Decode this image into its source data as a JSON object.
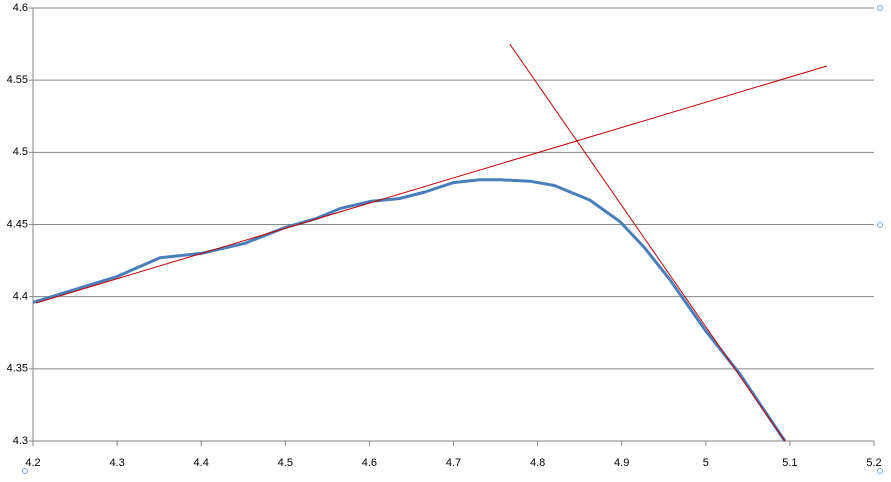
{
  "chart_data": {
    "type": "line",
    "xlim": [
      4.2,
      5.2
    ],
    "xticks": [
      4.2,
      4.3,
      4.4,
      4.5,
      4.6,
      4.7,
      4.8,
      4.9,
      5,
      5.1,
      5.2
    ],
    "ylim": [
      4.3,
      4.6
    ],
    "yticks": [
      4.6,
      4.55,
      4.5,
      4.45,
      4.4,
      4.35,
      4.3
    ],
    "grid": true,
    "series": [
      {
        "color": "#4a7ebb",
        "width": 3,
        "x": [
          4.2,
          4.3,
          4.351,
          4.4,
          4.452,
          4.5,
          4.536,
          4.565,
          4.601,
          4.636,
          4.666,
          4.7,
          4.731,
          4.755,
          4.791,
          4.82,
          4.862,
          4.898,
          4.927,
          4.957,
          4.999,
          5.041,
          5.094
        ],
        "values": [
          4.396,
          4.414,
          4.427,
          4.43,
          4.437,
          4.448,
          4.454,
          4.461,
          4.466,
          4.468,
          4.4725,
          4.479,
          4.481,
          4.481,
          4.48,
          4.477,
          4.467,
          4.452,
          4.434,
          4.412,
          4.377,
          4.346,
          4.3
        ]
      },
      {
        "color": "#c00000",
        "width": 1,
        "x": [
          4.2036,
          5.144
        ],
        "values": [
          4.3956,
          4.5598
        ]
      },
      {
        "color": "#c00000",
        "width": 1,
        "x": [
          4.767,
          5.094
        ],
        "values": [
          4.575,
          4.3
        ]
      }
    ]
  }
}
